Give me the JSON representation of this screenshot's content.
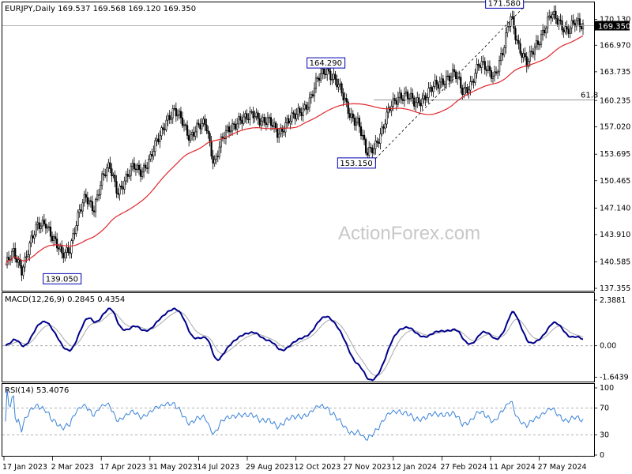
{
  "chart_data": [
    {
      "panel": "price",
      "type": "candlestick",
      "title": "EURJPY,Daily",
      "ohlc_header": "169.537 169.568 169.120 169.350",
      "last_price_tag": "169.350",
      "watermark": "ActionForex.com",
      "ylim": [
        137.355,
        172.0
      ],
      "y_ticks": [
        "170.130",
        "166.970",
        "163.735",
        "160.235",
        "157.020",
        "153.695",
        "150.465",
        "147.140",
        "143.910",
        "140.585",
        "137.355"
      ],
      "close_approx": [
        140.2,
        141.5,
        139.8,
        142.6,
        144.8,
        145.6,
        143.2,
        141.3,
        142.4,
        145.9,
        148.4,
        147.3,
        150.5,
        152.2,
        149.3,
        150.4,
        152.3,
        151.8,
        152.8,
        155.6,
        157.9,
        158.7,
        157.9,
        155.9,
        156.8,
        157.5,
        152.6,
        155.3,
        157.0,
        157.9,
        157.8,
        158.8,
        157.8,
        157.4,
        156.3,
        157.6,
        158.1,
        159.2,
        160.4,
        162.8,
        164.2,
        162.9,
        160.8,
        158.6,
        157.5,
        153.6,
        154.9,
        156.6,
        159.4,
        161.0,
        160.8,
        159.8,
        160.6,
        161.5,
        162.1,
        163.2,
        163.5,
        161.2,
        162.4,
        164.5,
        164.1,
        163.5,
        165.9,
        170.7,
        166.9,
        164.5,
        166.8,
        168.7,
        170.5,
        169.9,
        168.9,
        169.5,
        169.35
      ],
      "ma_color": "#e0262b",
      "candle_color": "#000000",
      "annotations": [
        {
          "label": "139.050",
          "value": 139.05,
          "date": "2 Mar 2023"
        },
        {
          "label": "164.290",
          "value": 164.29,
          "date": "12 Oct 2023"
        },
        {
          "label": "153.150",
          "value": 153.15,
          "date": "27 Nov 2023"
        },
        {
          "label": "171.580",
          "value": 171.58,
          "date": "11 Apr 2024"
        }
      ],
      "fib_level": {
        "label": "61.8",
        "value": 160.3
      },
      "trend_line": {
        "from": "153.150",
        "to": "171.580",
        "style": "dashed"
      },
      "horizontal_line": 169.35
    },
    {
      "panel": "macd",
      "type": "line",
      "title": "MACD(12,26,9) 0.2845 0.4354",
      "y_ticks": [
        "2.3881",
        "0.00",
        "-1.6439"
      ],
      "ylim": [
        -1.6439,
        2.3881
      ],
      "main_color": "#00008b",
      "signal_color": "#aaaaaa"
    },
    {
      "panel": "rsi",
      "type": "line",
      "title": "RSI(14) 53.4076",
      "y_ticks": [
        "100",
        "70",
        "30",
        "0"
      ],
      "ylim": [
        0,
        100
      ],
      "line_color": "#3a83d8"
    }
  ],
  "x_ticks": [
    "17 Jan 2023",
    "2 Mar 2023",
    "17 Apr 2023",
    "31 May 2023",
    "14 Jul 2023",
    "29 Aug 2023",
    "12 Oct 2023",
    "27 Nov 2023",
    "12 Jan 2024",
    "27 Feb 2024",
    "11 Apr 2024",
    "27 May 2024"
  ]
}
